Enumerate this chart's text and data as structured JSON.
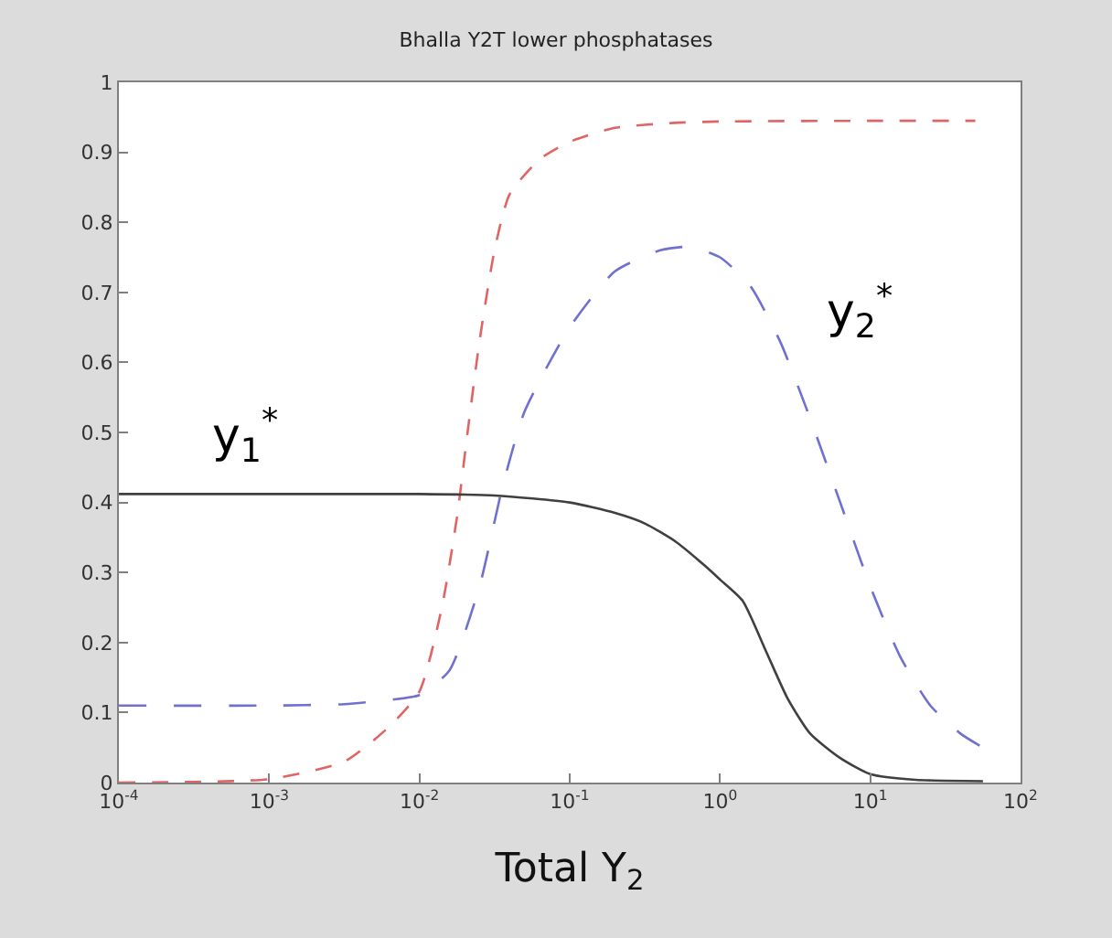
{
  "chart_data": {
    "type": "line",
    "title": "Bhalla Y2T lower phosphatases",
    "xlabel": "Total Y$_{2}$",
    "log": "x",
    "marker": "none",
    "xlim": [
      0.0001,
      100
    ],
    "ylim": [
      0,
      1
    ],
    "xticks": [
      {
        "value": 0.0001,
        "label": "10$^{-4}$"
      },
      {
        "value": 0.001,
        "label": "10$^{-3}$"
      },
      {
        "value": 0.01,
        "label": "10$^{-2}$"
      },
      {
        "value": 0.1,
        "label": "10$^{-1}$"
      },
      {
        "value": 1,
        "label": "10$^{0}$"
      },
      {
        "value": 10,
        "label": "10$^{1}$"
      },
      {
        "value": 100,
        "label": "10$^{2}$"
      }
    ],
    "yticks": [
      0,
      0.1,
      0.2,
      0.3,
      0.4,
      0.5,
      0.6,
      0.7,
      0.8,
      0.9,
      1
    ],
    "annotations": [
      "y$_{1}$$^{*}$",
      "y$_{2}$$^{*}$"
    ],
    "series": [
      {
        "color": "#e06464",
        "line_style": "dotted",
        "x": [
          0.0001,
          0.000316,
          0.001,
          0.00316,
          0.0063,
          0.01,
          0.0141,
          0.0178,
          0.0209,
          0.0251,
          0.0316,
          0.0398,
          0.0631,
          0.1,
          0.2,
          0.5,
          1,
          10,
          50
        ],
        "values": [
          0,
          0.001,
          0.005,
          0.03,
          0.08,
          0.13,
          0.25,
          0.38,
          0.5,
          0.63,
          0.76,
          0.84,
          0.89,
          0.915,
          0.935,
          0.942,
          0.944,
          0.945,
          0.945
        ]
      },
      {
        "color": "#7070d0",
        "line_style": "dashed",
        "x": [
          0.0001,
          0.001,
          0.00316,
          0.0063,
          0.01,
          0.0158,
          0.0251,
          0.0355,
          0.0501,
          0.1,
          0.2,
          0.4,
          0.63,
          1,
          1.58,
          2.51,
          3.98,
          6.31,
          10,
          15.8,
          25.1,
          39.8,
          56.2
        ],
        "values": [
          0.11,
          0.11,
          0.112,
          0.118,
          0.125,
          0.16,
          0.28,
          0.42,
          0.53,
          0.65,
          0.73,
          0.76,
          0.765,
          0.75,
          0.71,
          0.63,
          0.52,
          0.4,
          0.28,
          0.18,
          0.11,
          0.07,
          0.05
        ]
      },
      {
        "color": "#404040",
        "line_style": "solid",
        "x": [
          0.0001,
          0.01,
          0.0316,
          0.1,
          0.2,
          0.316,
          0.5,
          0.79,
          1,
          1.41,
          2,
          2.82,
          3.98,
          6.31,
          10,
          20,
          56.2
        ],
        "values": [
          0.412,
          0.412,
          0.41,
          0.4,
          0.385,
          0.37,
          0.345,
          0.31,
          0.29,
          0.26,
          0.19,
          0.12,
          0.07,
          0.035,
          0.012,
          0.004,
          0.002
        ]
      }
    ]
  }
}
